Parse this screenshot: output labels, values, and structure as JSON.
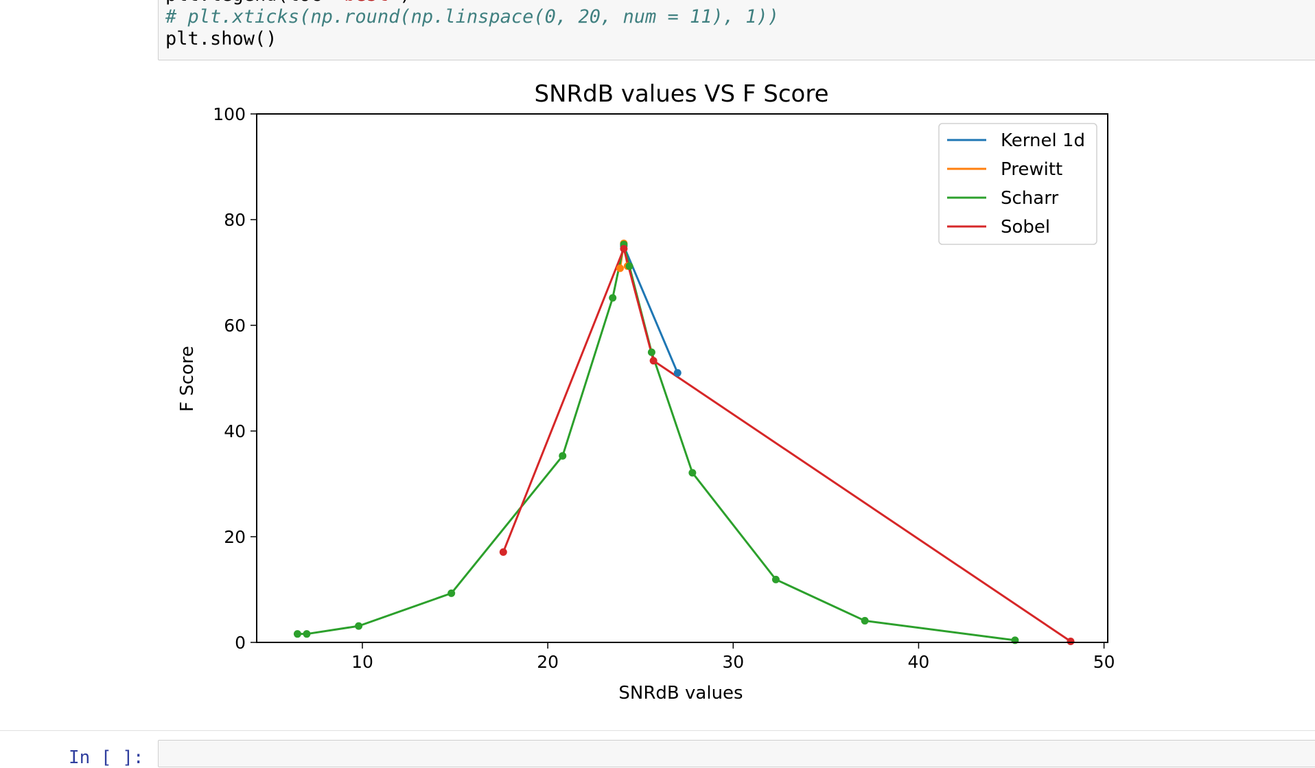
{
  "code": {
    "partial_line_prefix": "plt.legend(loc=",
    "partial_line_string": "'best'",
    "partial_line_suffix": ")",
    "comment_line": "# plt.xticks(np.round(np.linspace(0, 20, num = 11), 1))",
    "show_line": "plt.show()"
  },
  "next_cell": {
    "prompt": "In [ ]:"
  },
  "chart_data": {
    "type": "line",
    "title": "SNRdB values VS F Score",
    "xlabel": "SNRdB values",
    "ylabel": "F Score",
    "xlim": [
      4.3,
      50.2
    ],
    "ylim": [
      0,
      100
    ],
    "xticks": [
      10,
      20,
      30,
      40,
      50
    ],
    "yticks": [
      0,
      20,
      40,
      60,
      80,
      100
    ],
    "grid": false,
    "legend_position": "top-right",
    "series": [
      {
        "name": "Kernel 1d",
        "color": "#1f77b4",
        "x": [
          24.1,
          27.0
        ],
        "y": [
          75.0,
          51.0
        ]
      },
      {
        "name": "Prewitt",
        "color": "#ff7f0e",
        "x": [
          23.9,
          24.1,
          24.3
        ],
        "y": [
          70.8,
          75.5,
          71.2
        ]
      },
      {
        "name": "Scharr",
        "color": "#2ca02c",
        "x": [
          6.5,
          7.0,
          9.8,
          14.8,
          20.8,
          23.5,
          24.1,
          24.4,
          25.6,
          27.8,
          32.3,
          37.1,
          45.2
        ],
        "y": [
          1.6,
          1.6,
          3.1,
          9.3,
          35.3,
          65.2,
          75.3,
          71.2,
          54.9,
          32.1,
          11.9,
          4.1,
          0.4
        ]
      },
      {
        "name": "Sobel",
        "color": "#d62728",
        "x": [
          17.6,
          24.1,
          25.7,
          48.2
        ],
        "y": [
          17.1,
          74.5,
          53.3,
          0.2
        ]
      }
    ]
  }
}
